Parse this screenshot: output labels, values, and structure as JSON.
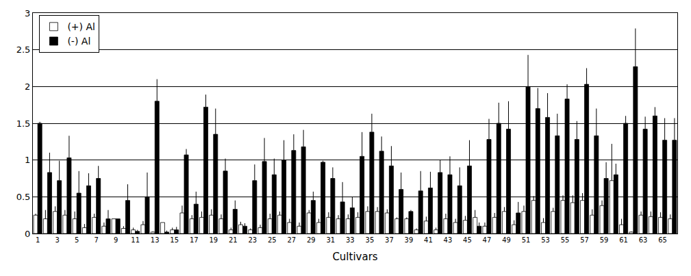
{
  "chart_data": {
    "type": "bar",
    "x_label": "Cultivars",
    "categories": [
      "1",
      null,
      "3",
      null,
      "5",
      null,
      "7",
      null,
      "9",
      null,
      "11",
      null,
      "13",
      null,
      "15",
      null,
      "17",
      null,
      "19",
      null,
      "21",
      null,
      "23",
      null,
      "25",
      null,
      "27",
      null,
      "29",
      null,
      "31",
      null,
      "33",
      null,
      "35",
      null,
      "37",
      null,
      "39",
      null,
      "41",
      null,
      "43",
      null,
      "45",
      null,
      "47",
      null,
      "49",
      null,
      "51",
      null,
      "53",
      null,
      "55",
      null,
      "57",
      null,
      "59",
      null,
      "61",
      null,
      "63",
      null,
      "65",
      null
    ],
    "series": [
      {
        "name": "(+) Al",
        "color": "#ffffff",
        "values": [
          0.25,
          0.2,
          0.3,
          0.25,
          0.2,
          0.08,
          0.22,
          0.1,
          0.2,
          0.07,
          0.05,
          0.12,
          0.02,
          0.15,
          0.05,
          0.28,
          0.2,
          0.22,
          0.25,
          0.2,
          0.05,
          0.12,
          0.05,
          0.08,
          0.2,
          0.25,
          0.15,
          0.1,
          0.28,
          0.15,
          0.22,
          0.2,
          0.2,
          0.22,
          0.3,
          0.3,
          0.28,
          0.2,
          0.2,
          0.05,
          0.17,
          0.05,
          0.2,
          0.15,
          0.18,
          0.22,
          0.1,
          0.22,
          0.3,
          0.12,
          0.3,
          0.45,
          0.15,
          0.3,
          0.45,
          0.42,
          0.45,
          0.25,
          0.38,
          0.72,
          0.12,
          0.02,
          0.25,
          0.23,
          0.22,
          0.2
        ],
        "errors": [
          0.02,
          0.12,
          0.07,
          0.07,
          0.1,
          0.05,
          0.05,
          0.05,
          0.0,
          0.03,
          0.03,
          0.05,
          0.01,
          0.0,
          0.03,
          0.1,
          0.05,
          0.08,
          0.08,
          0.06,
          0.03,
          0.04,
          0.02,
          0.04,
          0.07,
          0.05,
          0.05,
          0.05,
          0.04,
          0.05,
          0.07,
          0.05,
          0.06,
          0.07,
          0.07,
          0.06,
          0.05,
          0.02,
          0.02,
          0.02,
          0.06,
          0.03,
          0.07,
          0.05,
          0.06,
          0.1,
          0.05,
          0.06,
          0.06,
          0.06,
          0.08,
          0.06,
          0.06,
          0.05,
          0.07,
          0.1,
          0.1,
          0.08,
          0.07,
          0.5,
          0.08,
          0.01,
          0.05,
          0.07,
          0.07,
          0.06
        ]
      },
      {
        "name": "(-) Al",
        "color": "#000000",
        "values": [
          1.5,
          0.83,
          0.72,
          1.03,
          0.55,
          0.65,
          0.75,
          0.2,
          0.2,
          0.45,
          0.03,
          0.5,
          1.8,
          0.02,
          0.05,
          1.07,
          0.4,
          1.72,
          1.35,
          0.85,
          0.33,
          0.1,
          0.72,
          0.98,
          0.8,
          1.0,
          1.13,
          1.18,
          0.45,
          0.97,
          0.75,
          0.43,
          0.35,
          1.05,
          1.38,
          1.12,
          0.92,
          0.6,
          0.3,
          0.58,
          0.62,
          0.83,
          0.8,
          0.65,
          0.92,
          0.1,
          1.28,
          1.5,
          1.42,
          0.28,
          2.0,
          1.7,
          1.58,
          1.33,
          1.83,
          1.28,
          2.03,
          1.33,
          0.75,
          0.8,
          1.5,
          2.27,
          1.42,
          1.6,
          1.27,
          1.27
        ],
        "errors": [
          0.02,
          0.27,
          0.27,
          0.3,
          0.3,
          0.17,
          0.17,
          0.12,
          0.0,
          0.22,
          0.02,
          0.33,
          0.3,
          0.02,
          0.04,
          0.08,
          0.17,
          0.17,
          0.35,
          0.17,
          0.12,
          0.04,
          0.22,
          0.32,
          0.22,
          0.27,
          0.22,
          0.23,
          0.12,
          0.02,
          0.15,
          0.27,
          0.15,
          0.33,
          0.25,
          0.2,
          0.27,
          0.23,
          0.02,
          0.27,
          0.22,
          0.17,
          0.25,
          0.25,
          0.35,
          0.05,
          0.28,
          0.28,
          0.38,
          0.15,
          0.43,
          0.28,
          0.33,
          0.3,
          0.2,
          0.25,
          0.22,
          0.37,
          0.22,
          0.15,
          0.1,
          0.52,
          0.17,
          0.12,
          0.3,
          0.3
        ]
      }
    ],
    "ylim": [
      0,
      3
    ],
    "yticks": [
      0,
      0.5,
      1,
      1.5,
      2,
      2.5,
      3
    ],
    "grid": true,
    "legend": "upper left"
  }
}
